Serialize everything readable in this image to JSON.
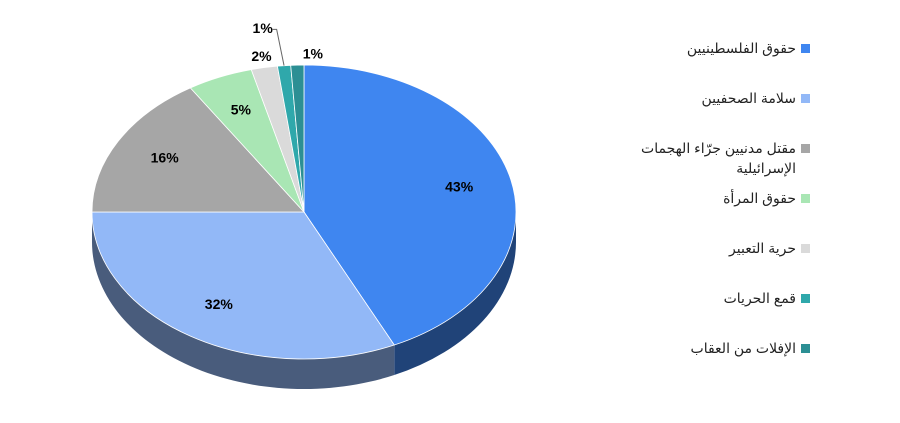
{
  "chart_data": {
    "type": "pie",
    "categories": [
      "حقوق الفلسطينيين",
      "سلامة الصحفيين",
      "مقتل مدنيين جرّاء الهجمات الإسرائيلية",
      "حقوق المرأة",
      "حرية التعبير",
      "قمع الحريات",
      "الإفلات من العقاب"
    ],
    "values": [
      43,
      32,
      16,
      5,
      2,
      1,
      1
    ],
    "value_labels": [
      "43%",
      "32%",
      "16%",
      "5%",
      "2%",
      "1%",
      "1%"
    ],
    "colors": [
      "#3f86f0",
      "#92b8f7",
      "#a6a6a6",
      "#a9e6b4",
      "#dadada",
      "#2fa8ab",
      "#2c8f94"
    ],
    "legend": "right"
  }
}
